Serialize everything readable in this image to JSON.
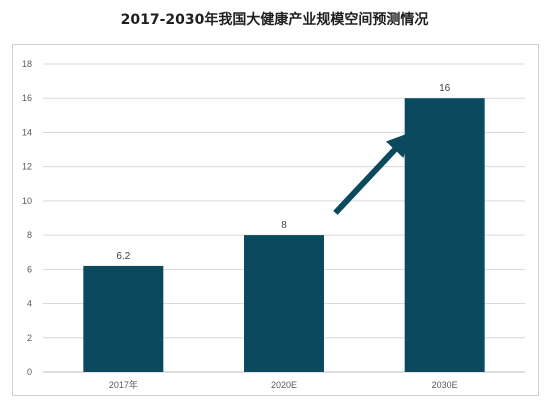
{
  "title": "2017-2030年我国大健康产业规模空间预测情况",
  "colors": {
    "bar": "#0b4a5e",
    "arrow": "#0b4a5e",
    "grid": "#d9d9d9",
    "axis": "#bfbfbf"
  },
  "chart_data": {
    "type": "bar",
    "title": "2017-2030年我国大健康产业规模空间预测情况",
    "categories": [
      "2017年",
      "2020E",
      "2030E"
    ],
    "values": [
      6.2,
      8,
      16
    ],
    "data_labels": [
      "6.2",
      "8",
      "16"
    ],
    "xlabel": "",
    "ylabel": "",
    "ylim": [
      0,
      18
    ],
    "yticks": [
      0,
      2,
      4,
      6,
      8,
      10,
      12,
      14,
      16,
      18
    ],
    "grid": true,
    "annotation": "upward-arrow"
  }
}
